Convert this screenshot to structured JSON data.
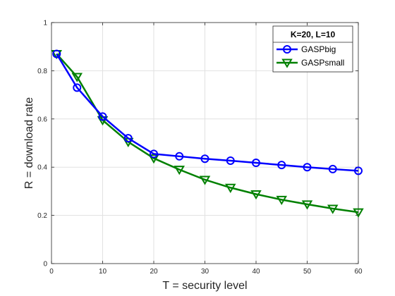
{
  "chart_data": {
    "type": "line",
    "title": "",
    "xlabel": "T = security level",
    "ylabel": "R = download rate",
    "xlim": [
      0,
      60
    ],
    "ylim": [
      0,
      1
    ],
    "xticks": [
      0,
      10,
      20,
      30,
      40,
      50,
      60
    ],
    "yticks": [
      0,
      0.2,
      0.4,
      0.6,
      0.8,
      1
    ],
    "ytick_labels": [
      "0",
      "0.2",
      "0.4",
      "0.6",
      "0.8",
      "1"
    ],
    "grid": true,
    "legend": {
      "title": "K=20, L=10",
      "position": "top-right"
    },
    "x": [
      1,
      5,
      10,
      15,
      20,
      25,
      30,
      35,
      40,
      45,
      50,
      55,
      60
    ],
    "series": [
      {
        "name": "GASPbig",
        "color": "#0000ff",
        "marker": "circle",
        "values": [
          0.87,
          0.73,
          0.61,
          0.52,
          0.455,
          0.445,
          0.435,
          0.427,
          0.418,
          0.409,
          0.4,
          0.392,
          0.385
        ]
      },
      {
        "name": "GASPsmall",
        "color": "#008000",
        "marker": "triangle-down",
        "values": [
          0.87,
          0.775,
          0.595,
          0.505,
          0.437,
          0.39,
          0.348,
          0.315,
          0.288,
          0.265,
          0.246,
          0.228,
          0.213
        ]
      }
    ]
  }
}
